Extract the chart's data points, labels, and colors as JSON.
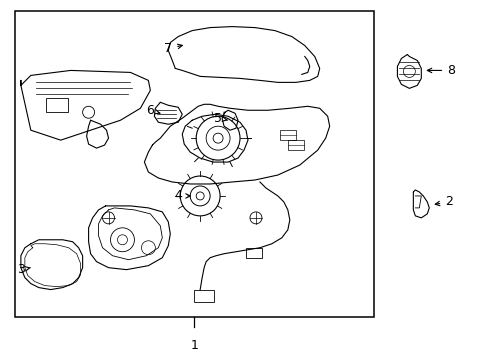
{
  "bg": "#ffffff",
  "lc": "#000000",
  "fig_w": 4.89,
  "fig_h": 3.6,
  "dpi": 100,
  "fs": 8
}
